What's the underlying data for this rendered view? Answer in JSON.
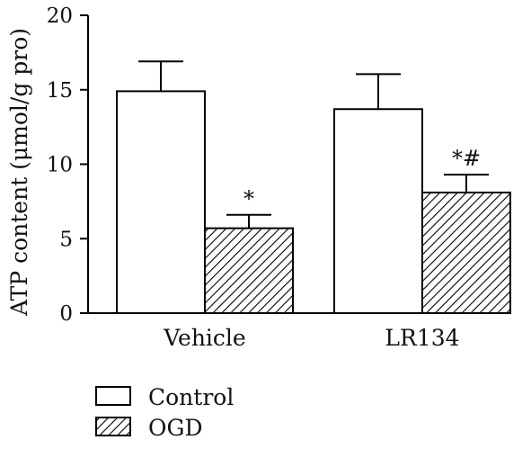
{
  "chart_data": {
    "type": "bar",
    "title": "",
    "xlabel": "",
    "ylabel": "ATP content (μmol/g pro)",
    "ylim": [
      0,
      20
    ],
    "yticks": [
      0,
      5,
      10,
      15,
      20
    ],
    "categories": [
      "Vehicle",
      "LR134"
    ],
    "series": [
      {
        "name": "Control",
        "fill": "white",
        "values": [
          14.9,
          13.7
        ],
        "errors": [
          2.0,
          2.35
        ],
        "annotations": [
          "",
          ""
        ]
      },
      {
        "name": "OGD",
        "fill": "hatched",
        "values": [
          5.7,
          8.1
        ],
        "errors": [
          0.9,
          1.2
        ],
        "annotations": [
          "*",
          "*#"
        ]
      }
    ],
    "grid": false,
    "legend_position": "bottom-left"
  }
}
